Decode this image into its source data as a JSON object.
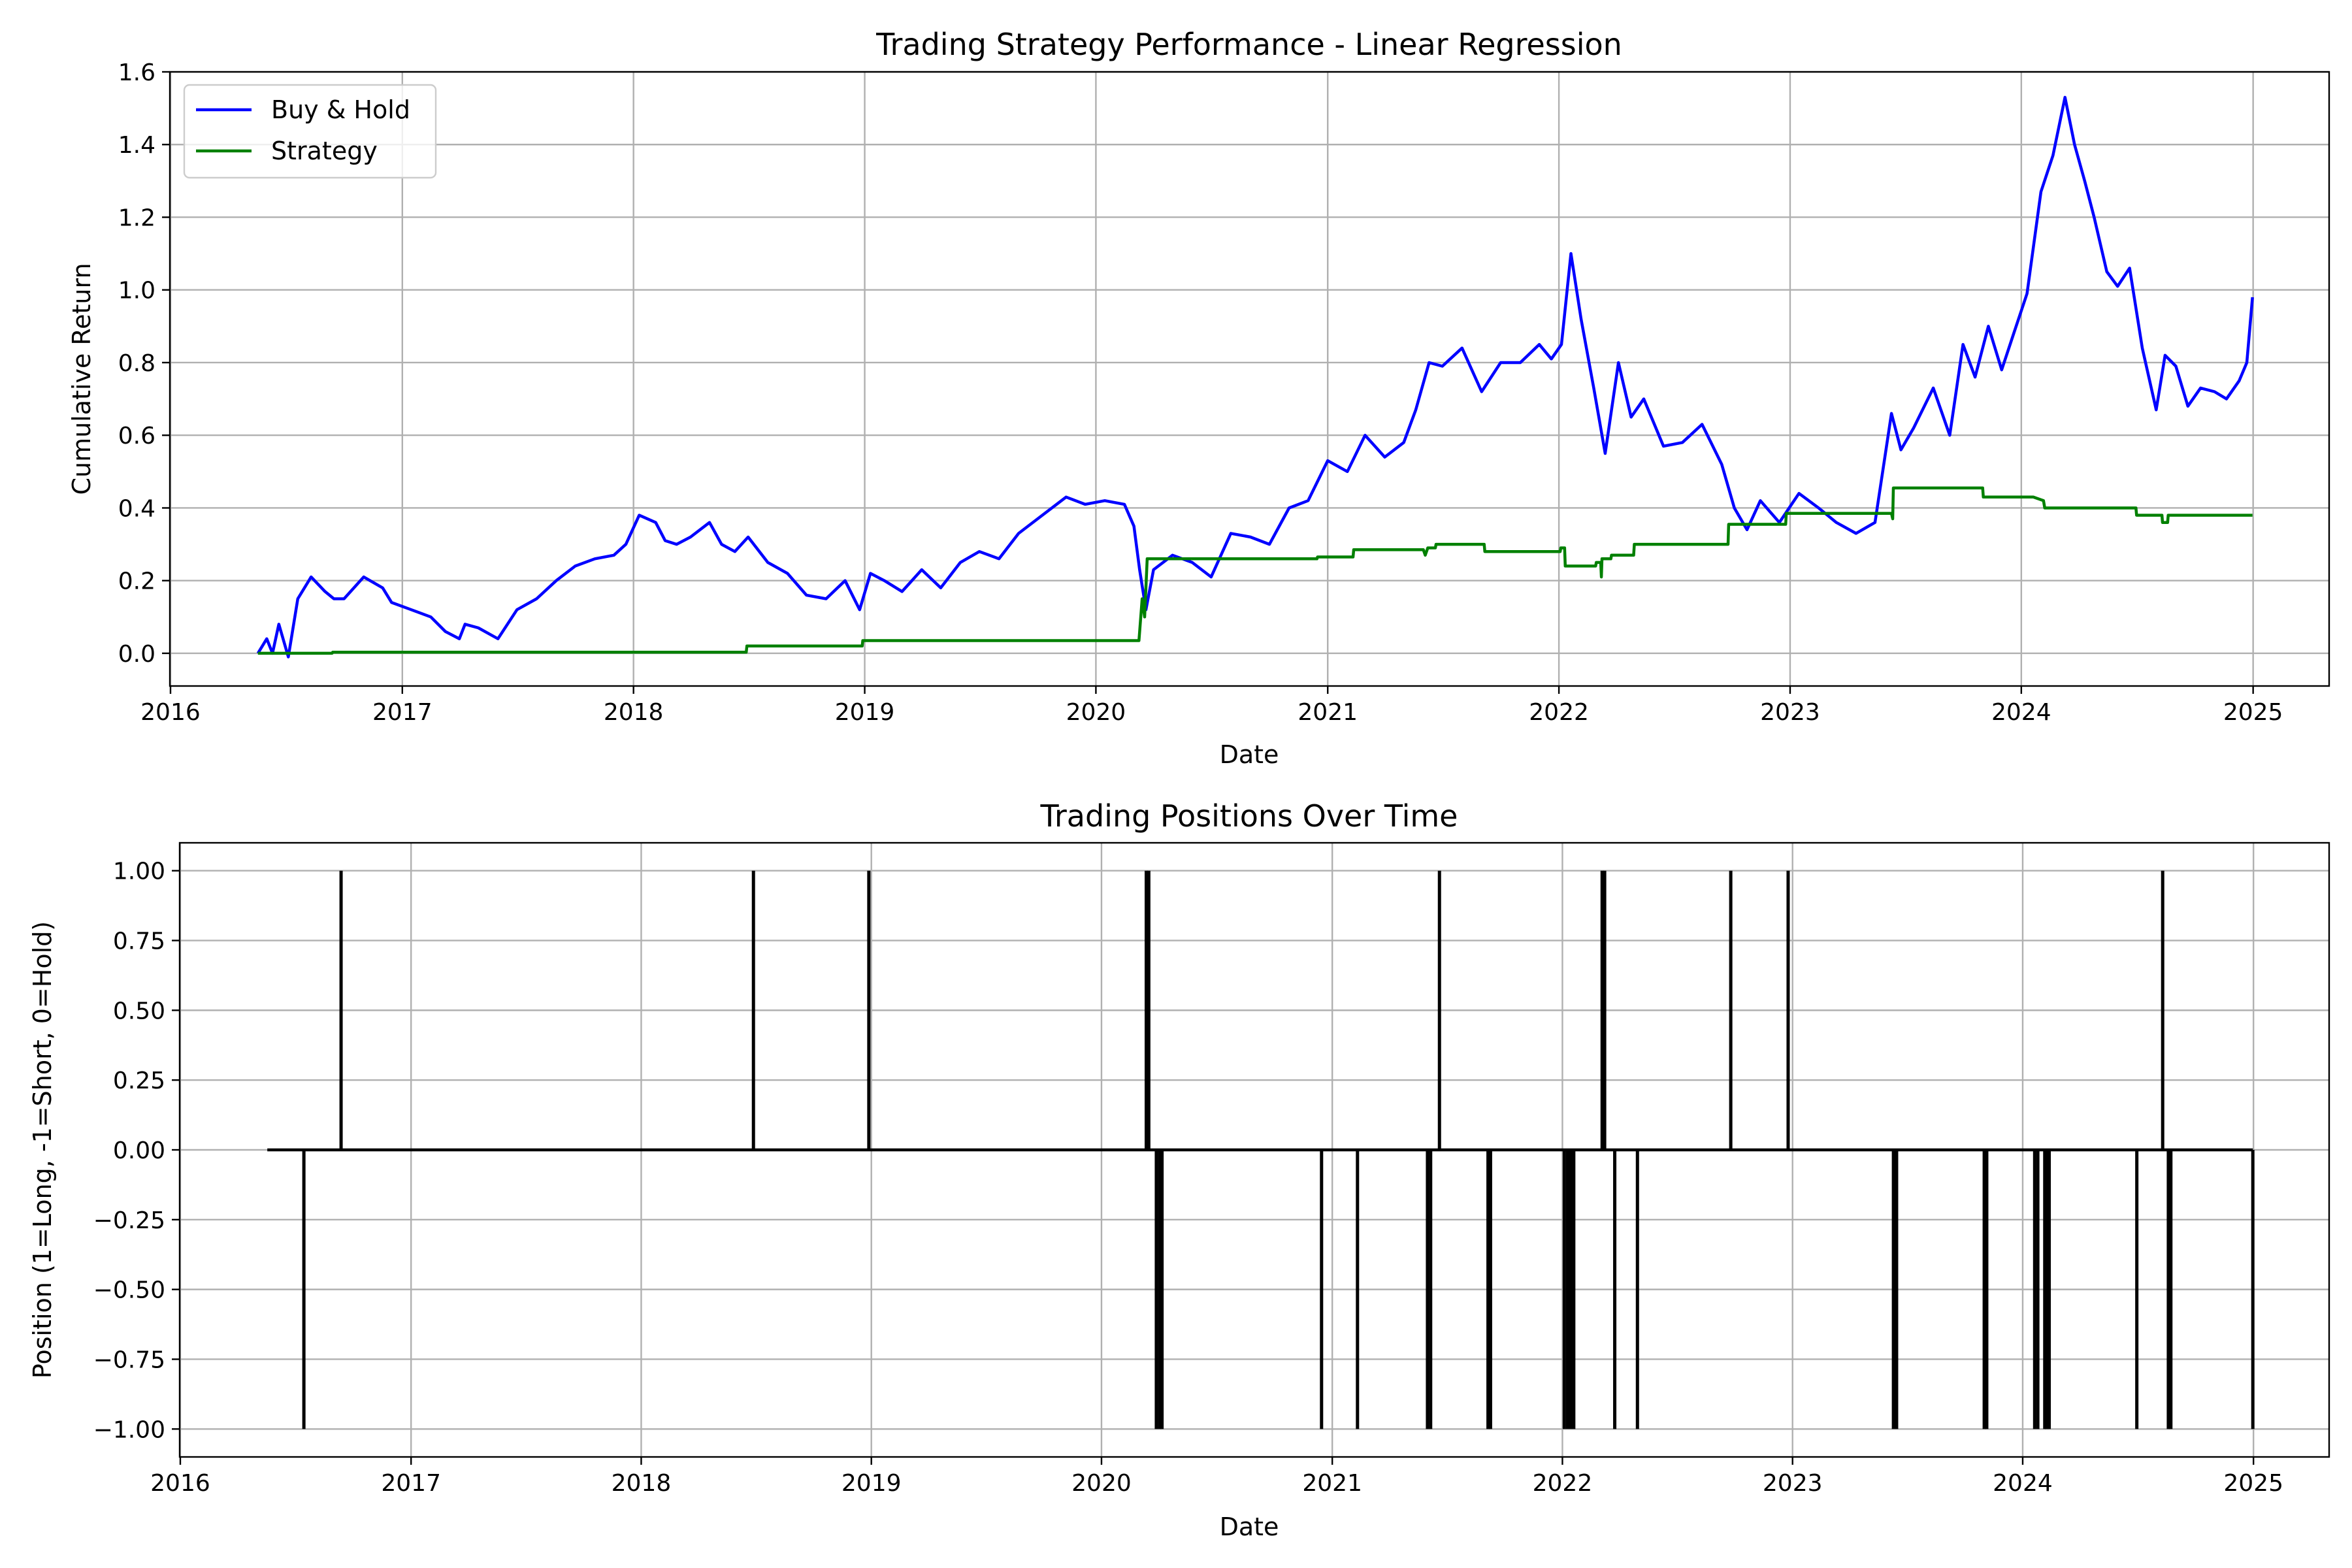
{
  "chart_data": [
    {
      "type": "line",
      "title": "Trading Strategy Performance - Linear Regression",
      "xlabel": "Date",
      "ylabel": "Cumulative Return",
      "xlim": [
        "2015-12-31",
        "2025-05-01"
      ],
      "ylim": [
        -0.09,
        1.6
      ],
      "x_ticks": [
        "2016",
        "2017",
        "2018",
        "2019",
        "2020",
        "2021",
        "2022",
        "2023",
        "2024",
        "2025"
      ],
      "y_ticks": [
        0.0,
        0.2,
        0.4,
        0.6,
        0.8,
        1.0,
        1.2,
        1.4,
        1.6
      ],
      "y_tick_labels": [
        "0.0",
        "0.2",
        "0.4",
        "0.6",
        "0.8",
        "1.0",
        "1.2",
        "1.4",
        "1.6"
      ],
      "grid": true,
      "legend": "top-left",
      "series": [
        {
          "name": "Buy & Hold",
          "color": "#0000ff",
          "x": [
            "2016-05-18",
            "2016-06-01",
            "2016-06-10",
            "2016-06-20",
            "2016-07-05",
            "2016-07-20",
            "2016-08-10",
            "2016-09-01",
            "2016-09-15",
            "2016-10-01",
            "2016-11-01",
            "2016-12-01",
            "2016-12-15",
            "2017-01-15",
            "2017-02-15",
            "2017-03-10",
            "2017-04-01",
            "2017-04-10",
            "2017-05-01",
            "2017-06-01",
            "2017-07-01",
            "2017-08-01",
            "2017-09-01",
            "2017-10-01",
            "2017-11-01",
            "2017-12-01",
            "2017-12-20",
            "2018-01-10",
            "2018-02-05",
            "2018-02-20",
            "2018-03-10",
            "2018-04-01",
            "2018-05-01",
            "2018-05-20",
            "2018-06-10",
            "2018-07-01",
            "2018-08-01",
            "2018-09-01",
            "2018-10-01",
            "2018-11-01",
            "2018-12-01",
            "2018-12-24",
            "2019-01-10",
            "2019-02-01",
            "2019-03-01",
            "2019-04-01",
            "2019-05-01",
            "2019-06-01",
            "2019-07-01",
            "2019-08-01",
            "2019-09-01",
            "2019-10-01",
            "2019-11-15",
            "2019-12-15",
            "2020-01-15",
            "2020-02-15",
            "2020-03-01",
            "2020-03-10",
            "2020-03-20",
            "2020-04-01",
            "2020-05-01",
            "2020-06-01",
            "2020-07-01",
            "2020-08-01",
            "2020-09-01",
            "2020-10-01",
            "2020-11-01",
            "2020-12-01",
            "2021-01-01",
            "2021-02-01",
            "2021-03-01",
            "2021-04-01",
            "2021-05-01",
            "2021-05-20",
            "2021-06-10",
            "2021-07-01",
            "2021-08-01",
            "2021-09-01",
            "2021-10-01",
            "2021-11-01",
            "2021-12-01",
            "2021-12-20",
            "2022-01-05",
            "2022-01-20",
            "2022-02-05",
            "2022-02-25",
            "2022-03-15",
            "2022-04-05",
            "2022-04-25",
            "2022-05-15",
            "2022-06-15",
            "2022-07-15",
            "2022-08-15",
            "2022-09-15",
            "2022-10-05",
            "2022-10-25",
            "2022-11-15",
            "2022-12-15",
            "2023-01-15",
            "2023-02-15",
            "2023-03-15",
            "2023-04-15",
            "2023-05-15",
            "2023-06-10",
            "2023-06-25",
            "2023-07-15",
            "2023-08-15",
            "2023-09-10",
            "2023-10-01",
            "2023-10-20",
            "2023-11-10",
            "2023-12-01",
            "2023-12-20",
            "2024-01-10",
            "2024-02-01",
            "2024-02-20",
            "2024-03-10",
            "2024-03-25",
            "2024-04-10",
            "2024-04-25",
            "2024-05-15",
            "2024-06-01",
            "2024-06-20",
            "2024-07-10",
            "2024-08-01",
            "2024-08-15",
            "2024-09-01",
            "2024-09-20",
            "2024-10-10",
            "2024-11-01",
            "2024-11-20",
            "2024-12-10",
            "2024-12-22",
            "2024-12-31"
          ],
          "y": [
            0.0,
            0.04,
            0.0,
            0.08,
            -0.01,
            0.15,
            0.21,
            0.17,
            0.15,
            0.15,
            0.21,
            0.18,
            0.14,
            0.12,
            0.1,
            0.06,
            0.04,
            0.08,
            0.07,
            0.04,
            0.12,
            0.15,
            0.2,
            0.24,
            0.26,
            0.27,
            0.3,
            0.38,
            0.36,
            0.31,
            0.3,
            0.32,
            0.36,
            0.3,
            0.28,
            0.32,
            0.25,
            0.22,
            0.16,
            0.15,
            0.2,
            0.12,
            0.22,
            0.2,
            0.17,
            0.23,
            0.18,
            0.25,
            0.28,
            0.26,
            0.33,
            0.37,
            0.43,
            0.41,
            0.42,
            0.41,
            0.35,
            0.23,
            0.12,
            0.23,
            0.27,
            0.25,
            0.21,
            0.33,
            0.32,
            0.3,
            0.4,
            0.42,
            0.53,
            0.5,
            0.6,
            0.54,
            0.58,
            0.67,
            0.8,
            0.79,
            0.84,
            0.72,
            0.8,
            0.8,
            0.85,
            0.81,
            0.85,
            1.1,
            0.92,
            0.73,
            0.55,
            0.8,
            0.65,
            0.7,
            0.57,
            0.58,
            0.63,
            0.52,
            0.4,
            0.34,
            0.42,
            0.36,
            0.44,
            0.4,
            0.36,
            0.33,
            0.36,
            0.66,
            0.56,
            0.62,
            0.73,
            0.6,
            0.85,
            0.76,
            0.9,
            0.78,
            0.88,
            0.99,
            1.27,
            1.37,
            1.53,
            1.4,
            1.3,
            1.2,
            1.05,
            1.01,
            1.06,
            0.84,
            0.67,
            0.82,
            0.79,
            0.68,
            0.73,
            0.72,
            0.7,
            0.75,
            0.8,
            0.98
          ]
        },
        {
          "name": "Strategy",
          "color": "#008000",
          "x": [
            "2016-05-18",
            "2016-09-12",
            "2016-09-13",
            "2018-06-28",
            "2018-06-29",
            "2018-12-28",
            "2018-12-29",
            "2020-03-09",
            "2020-03-14",
            "2020-03-18",
            "2020-03-22",
            "2020-04-01",
            "2020-04-03",
            "2020-06-01",
            "2020-12-15",
            "2020-12-16",
            "2021-02-10",
            "2021-02-11",
            "2021-06-01",
            "2021-06-04",
            "2021-06-08",
            "2021-06-20",
            "2021-06-21",
            "2021-09-05",
            "2021-09-06",
            "2022-01-03",
            "2022-01-04",
            "2022-01-10",
            "2022-01-11",
            "2022-02-28",
            "2022-03-01",
            "2022-03-08",
            "2022-03-09",
            "2022-03-10",
            "2022-03-24",
            "2022-03-25",
            "2022-04-29",
            "2022-04-30",
            "2022-09-25",
            "2022-09-26",
            "2022-12-25",
            "2022-12-26",
            "2023-06-10",
            "2023-06-12",
            "2023-06-13",
            "2023-11-01",
            "2023-11-02",
            "2024-01-20",
            "2024-02-05",
            "2024-02-07",
            "2024-06-30",
            "2024-07-01",
            "2024-08-10",
            "2024-08-11",
            "2024-08-19",
            "2024-08-20",
            "2024-12-31"
          ],
          "y": [
            0.0,
            0.0,
            0.003,
            0.003,
            0.02,
            0.02,
            0.035,
            0.035,
            0.15,
            0.1,
            0.26,
            0.26,
            0.26,
            0.26,
            0.26,
            0.265,
            0.265,
            0.285,
            0.285,
            0.27,
            0.29,
            0.29,
            0.3,
            0.3,
            0.28,
            0.28,
            0.29,
            0.29,
            0.24,
            0.24,
            0.25,
            0.25,
            0.21,
            0.26,
            0.26,
            0.27,
            0.27,
            0.3,
            0.3,
            0.355,
            0.355,
            0.385,
            0.385,
            0.37,
            0.455,
            0.455,
            0.43,
            0.43,
            0.42,
            0.4,
            0.4,
            0.38,
            0.38,
            0.36,
            0.36,
            0.38,
            0.38
          ]
        }
      ]
    },
    {
      "type": "line",
      "title": "Trading Positions Over Time",
      "xlabel": "Date",
      "ylabel": "Position (1=Long, -1=Short, 0=Hold)",
      "xlim": [
        "2015-12-31",
        "2025-05-01"
      ],
      "ylim": [
        -1.1,
        1.1
      ],
      "x_ticks": [
        "2016",
        "2017",
        "2018",
        "2019",
        "2020",
        "2021",
        "2022",
        "2023",
        "2024",
        "2025"
      ],
      "y_ticks": [
        1.0,
        0.75,
        0.5,
        0.25,
        0.0,
        -0.25,
        -0.5,
        -0.75,
        -1.0
      ],
      "y_tick_labels": [
        "1.00",
        "0.75",
        "0.50",
        "0.25",
        "0.00",
        "−0.25",
        "−0.50",
        "−0.75",
        "−1.00"
      ],
      "grid": true,
      "series": [
        {
          "color": "#000000",
          "baseline_start": "2016-05-18",
          "baseline_end": "2024-12-31",
          "events": [
            {
              "date": "2016-07-15",
              "pos": -1
            },
            {
              "date": "2016-09-12",
              "pos": 1
            },
            {
              "date": "2018-06-28",
              "pos": 1
            },
            {
              "date": "2018-12-28",
              "pos": 1
            },
            {
              "date": "2020-03-12",
              "pos": 1
            },
            {
              "date": "2020-03-16",
              "pos": 1
            },
            {
              "date": "2020-03-28",
              "pos": -1
            },
            {
              "date": "2020-04-02",
              "pos": -1
            },
            {
              "date": "2020-04-06",
              "pos": -1
            },
            {
              "date": "2020-12-15",
              "pos": -1
            },
            {
              "date": "2021-02-10",
              "pos": -1
            },
            {
              "date": "2021-06-01",
              "pos": -1
            },
            {
              "date": "2021-06-06",
              "pos": -1
            },
            {
              "date": "2021-06-20",
              "pos": 1
            },
            {
              "date": "2021-09-05",
              "pos": -1
            },
            {
              "date": "2021-09-09",
              "pos": -1
            },
            {
              "date": "2022-01-04",
              "pos": -1
            },
            {
              "date": "2022-01-09",
              "pos": -1
            },
            {
              "date": "2022-01-14",
              "pos": -1
            },
            {
              "date": "2022-01-19",
              "pos": -1
            },
            {
              "date": "2022-03-05",
              "pos": 1
            },
            {
              "date": "2022-03-09",
              "pos": 1
            },
            {
              "date": "2022-03-25",
              "pos": -1
            },
            {
              "date": "2022-04-30",
              "pos": -1
            },
            {
              "date": "2022-09-25",
              "pos": 1
            },
            {
              "date": "2022-12-25",
              "pos": 1
            },
            {
              "date": "2023-06-10",
              "pos": -1
            },
            {
              "date": "2023-06-15",
              "pos": -1
            },
            {
              "date": "2023-11-01",
              "pos": -1
            },
            {
              "date": "2023-11-05",
              "pos": -1
            },
            {
              "date": "2024-01-20",
              "pos": -1
            },
            {
              "date": "2024-01-25",
              "pos": -1
            },
            {
              "date": "2024-02-05",
              "pos": -1
            },
            {
              "date": "2024-02-08",
              "pos": -1
            },
            {
              "date": "2024-02-12",
              "pos": -1
            },
            {
              "date": "2024-06-30",
              "pos": -1
            },
            {
              "date": "2024-08-10",
              "pos": 1
            },
            {
              "date": "2024-08-19",
              "pos": -1
            },
            {
              "date": "2024-08-23",
              "pos": -1
            },
            {
              "date": "2024-12-31",
              "pos": -1
            }
          ]
        }
      ]
    }
  ]
}
